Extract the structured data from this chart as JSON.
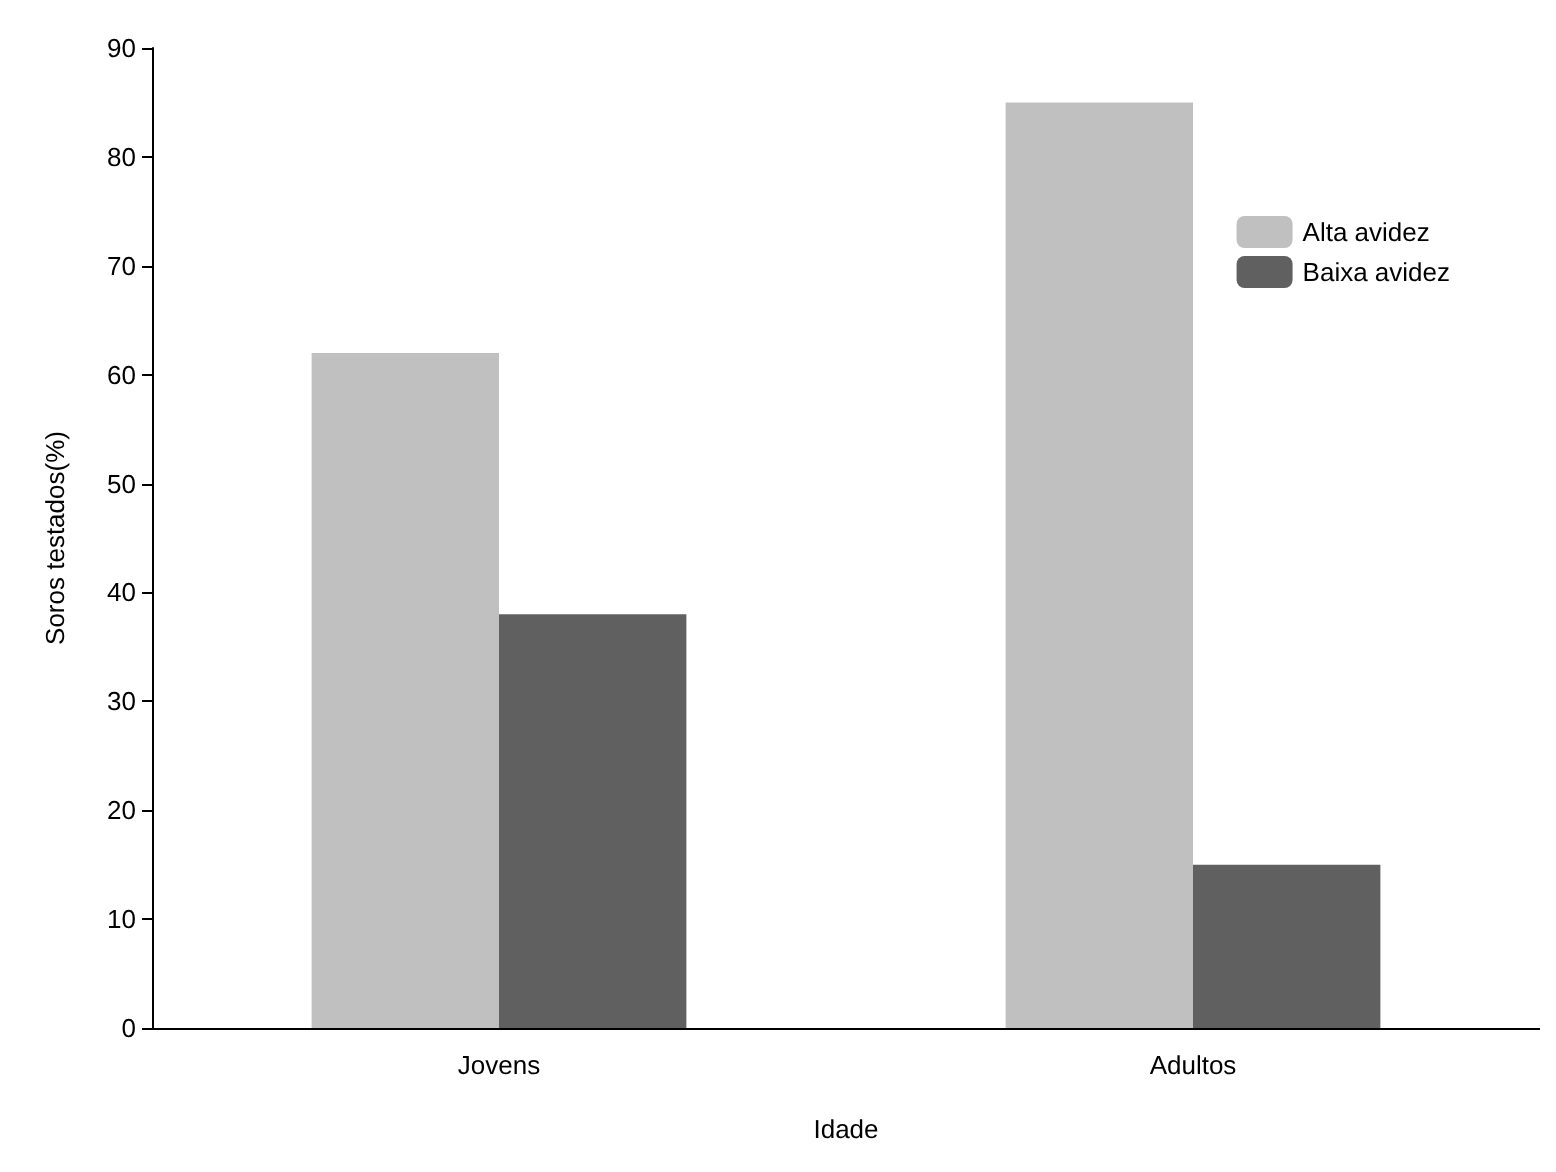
{
  "chart_data": {
    "type": "bar",
    "xlabel": "Idade",
    "ylabel": "Soros testados(%)",
    "categories": [
      "Jovens",
      "Adultos"
    ],
    "series": [
      {
        "name": "Alta avidez",
        "color": "#c0c0c0",
        "values": [
          62,
          85
        ]
      },
      {
        "name": "Baixa avidez",
        "color": "#606060",
        "values": [
          38,
          15
        ]
      }
    ],
    "ylim": [
      0,
      90
    ],
    "yticks": [
      0,
      10,
      20,
      30,
      40,
      50,
      60,
      70,
      80,
      90
    ],
    "grid": false,
    "legend": "top right"
  }
}
